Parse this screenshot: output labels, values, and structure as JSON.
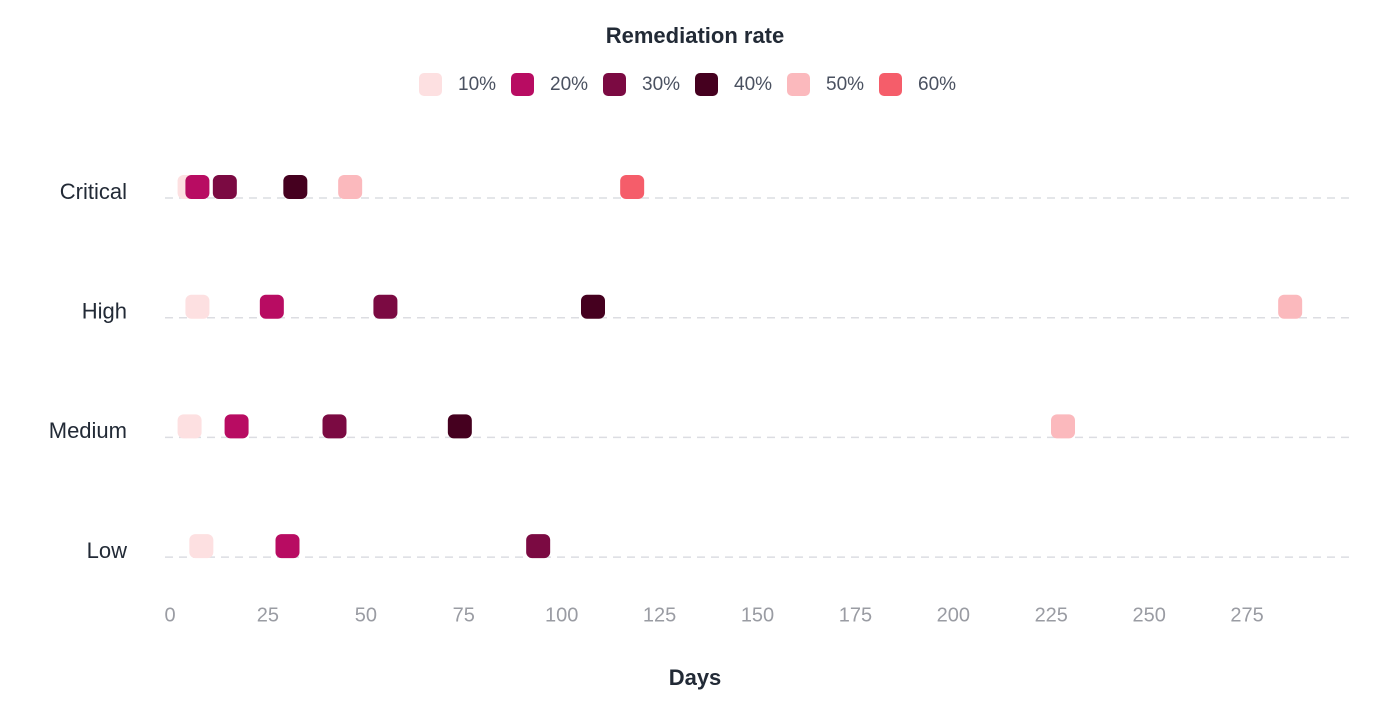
{
  "chart_data": {
    "type": "dot",
    "title": "Remediation rate",
    "x_label": "Days",
    "categories": [
      "Critical",
      "High",
      "Medium",
      "Low"
    ],
    "series": [
      {
        "name": "10%",
        "color": "#fde0e1",
        "values": [
          5,
          7,
          5,
          8
        ]
      },
      {
        "name": "20%",
        "color": "#b80c62",
        "values": [
          7,
          26,
          17,
          30
        ]
      },
      {
        "name": "30%",
        "color": "#7b0a42",
        "values": [
          14,
          55,
          42,
          94
        ]
      },
      {
        "name": "40%",
        "color": "#45001f",
        "values": [
          32,
          108,
          74,
          null
        ]
      },
      {
        "name": "50%",
        "color": "#fbb9bd",
        "values": [
          46,
          286,
          228,
          null
        ]
      },
      {
        "name": "60%",
        "color": "#f55d6a",
        "values": [
          118,
          null,
          null,
          null
        ]
      }
    ],
    "xlim": [
      0,
      300
    ],
    "xticks": [
      0,
      25,
      50,
      75,
      100,
      125,
      150,
      175,
      200,
      225,
      250,
      275
    ],
    "grid": true
  }
}
